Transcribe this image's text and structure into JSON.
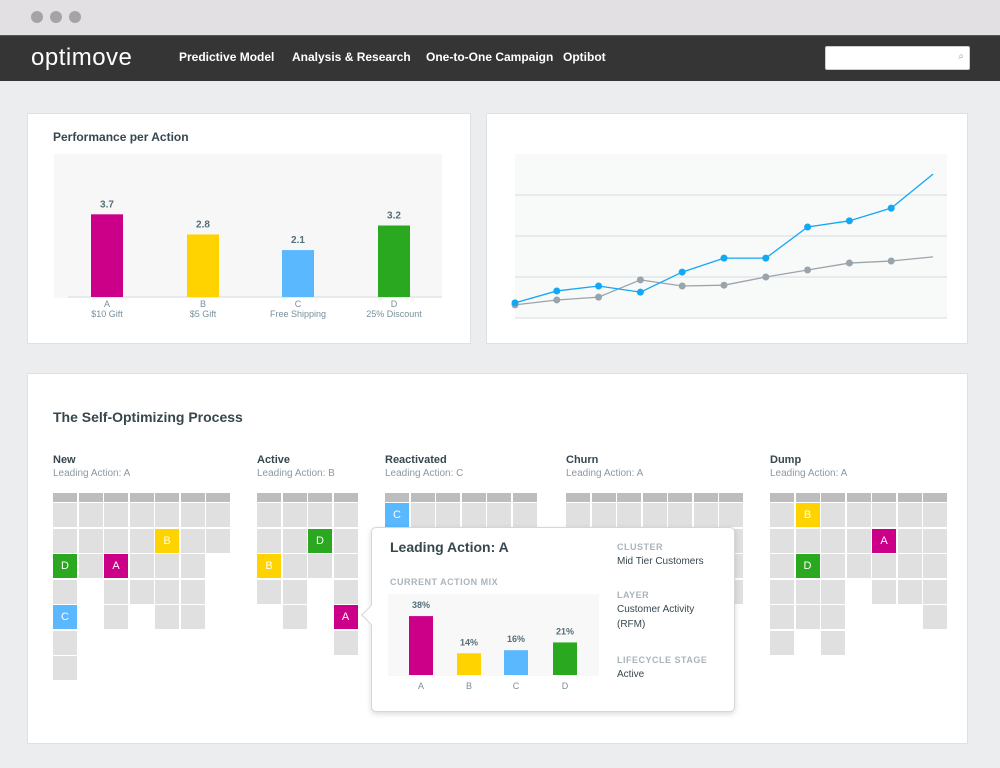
{
  "nav": {
    "logo": "optimove",
    "items": [
      "Predictive Model",
      "Analysis & Research",
      "One-to-One Campaign",
      "Optibot"
    ],
    "search_placeholder": "",
    "search_icon": "search-icon"
  },
  "colors": {
    "A": "#cc0088",
    "B": "#ffd300",
    "C": "#5ab8ff",
    "D": "#2aa820",
    "blue": "#11a8f5",
    "gray": "#9aa5ab"
  },
  "performance": {
    "title": "Performance per Action"
  },
  "chart_data": [
    {
      "type": "bar",
      "title": "Performance per Action",
      "categories": [
        "A",
        "B",
        "C",
        "D"
      ],
      "sublabels": [
        "$10 Gift",
        "$5 Gift",
        "Free Shipping",
        "25% Discount"
      ],
      "values": [
        3.7,
        2.8,
        2.1,
        3.2
      ],
      "labels": [
        "3.7",
        "2.8",
        "2.1",
        "3.2"
      ],
      "ylim": [
        0,
        6.4
      ],
      "grid": false
    },
    {
      "type": "line",
      "x": [
        1,
        2,
        3,
        4,
        5,
        6,
        7,
        8,
        9,
        10,
        11
      ],
      "ylim": [
        0,
        4
      ],
      "grid": true,
      "series": [
        {
          "color": "#11a8f5",
          "values": [
            0.37,
            0.66,
            0.78,
            0.63,
            1.12,
            1.46,
            1.46,
            2.22,
            2.37,
            2.68,
            3.51
          ]
        },
        {
          "color": "#9aa5ab",
          "values": [
            0.32,
            0.44,
            0.51,
            0.93,
            0.78,
            0.8,
            1.0,
            1.17,
            1.34,
            1.39,
            1.49
          ]
        }
      ]
    },
    {
      "type": "bar",
      "title": "CURRENT ACTION MIX",
      "categories": [
        "A",
        "B",
        "C",
        "D"
      ],
      "values": [
        38,
        14,
        16,
        21
      ],
      "labels": [
        "38%",
        "14%",
        "16%",
        "21%"
      ],
      "ylim": [
        0,
        51
      ]
    }
  ],
  "process": {
    "title": "The Self-Optimizing Process",
    "segments": [
      {
        "name": "New",
        "leading": "Leading Action: A",
        "cols": 7,
        "rows": [
          "ggggggg",
          "ggggBgg",
          "DgAggg.",
          "g.gggg.",
          "C.g.gg.",
          "g......",
          "g......"
        ]
      },
      {
        "name": "Active",
        "leading": "Leading Action: B",
        "cols": 4,
        "rows": [
          "gggg",
          "ggDg",
          "Bggg",
          "gg.g",
          ".g.A",
          "...g"
        ]
      },
      {
        "name": "Reactivated",
        "leading": "Leading Action: C",
        "cols": 6,
        "rows": [
          "Cggggg",
          "gggggg",
          "gggggg",
          "gggggg"
        ]
      },
      {
        "name": "Churn",
        "leading": "Leading Action: A",
        "cols": 7,
        "rows": [
          "ggggggg",
          "ggggggg",
          "ggggggg",
          "ggggggg"
        ]
      },
      {
        "name": "Dump",
        "leading": "Leading Action: A",
        "cols": 7,
        "rows": [
          "gBggggg",
          "ggggAgg",
          "gDggggg",
          "ggg.ggg",
          "ggg...g",
          "g.g...."
        ]
      }
    ]
  },
  "popup": {
    "title": "Leading Action: A",
    "mix_label": "CURRENT ACTION MIX",
    "cluster_label": "CLUSTER",
    "cluster": "Mid Tier Customers",
    "layer_label": "LAYER",
    "layer": "Customer Activity (RFM)",
    "stage_label": "LIFECYCLE STAGE",
    "stage": "Active"
  }
}
